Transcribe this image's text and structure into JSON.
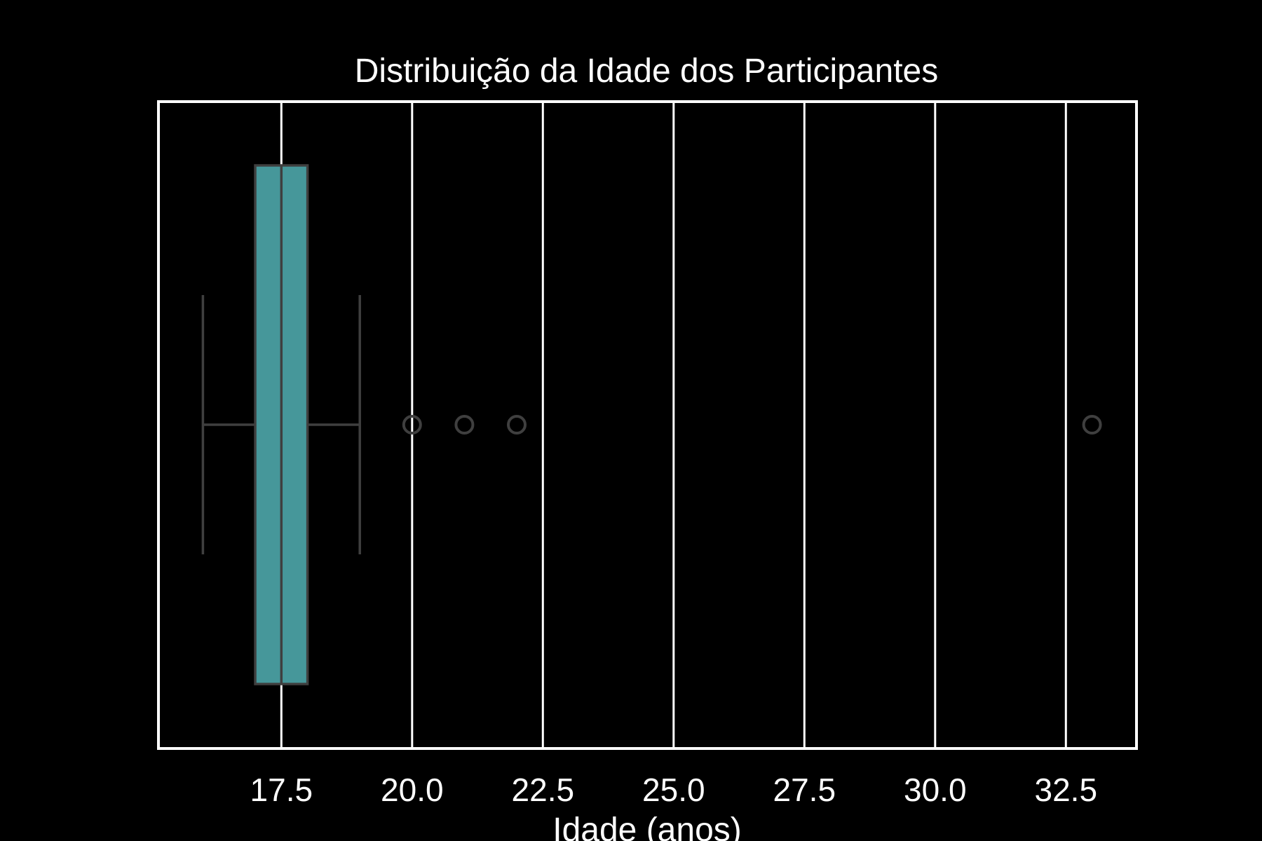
{
  "chart_data": {
    "type": "boxplot",
    "orientation": "horizontal",
    "title": "Distribuição da Idade dos Participantes",
    "xlabel": "Idade (anos)",
    "ylabel": "",
    "xlim": [
      15.15,
      33.85
    ],
    "xticks": [
      17.5,
      20.0,
      22.5,
      25.0,
      27.5,
      30.0,
      32.5
    ],
    "xtick_labels": [
      "17.5",
      "20.0",
      "22.5",
      "25.0",
      "27.5",
      "30.0",
      "32.5"
    ],
    "grid": "vertical",
    "box": {
      "whisker_low": 16,
      "q1": 17,
      "median": 17.5,
      "q3": 18,
      "whisker_high": 19,
      "outliers": [
        20,
        21,
        22,
        33
      ]
    },
    "colors": {
      "background": "#000000",
      "box_fill": "#46979a",
      "lines": "#3f3f3f",
      "grid": "#ffffff",
      "text": "#ffffff"
    }
  }
}
